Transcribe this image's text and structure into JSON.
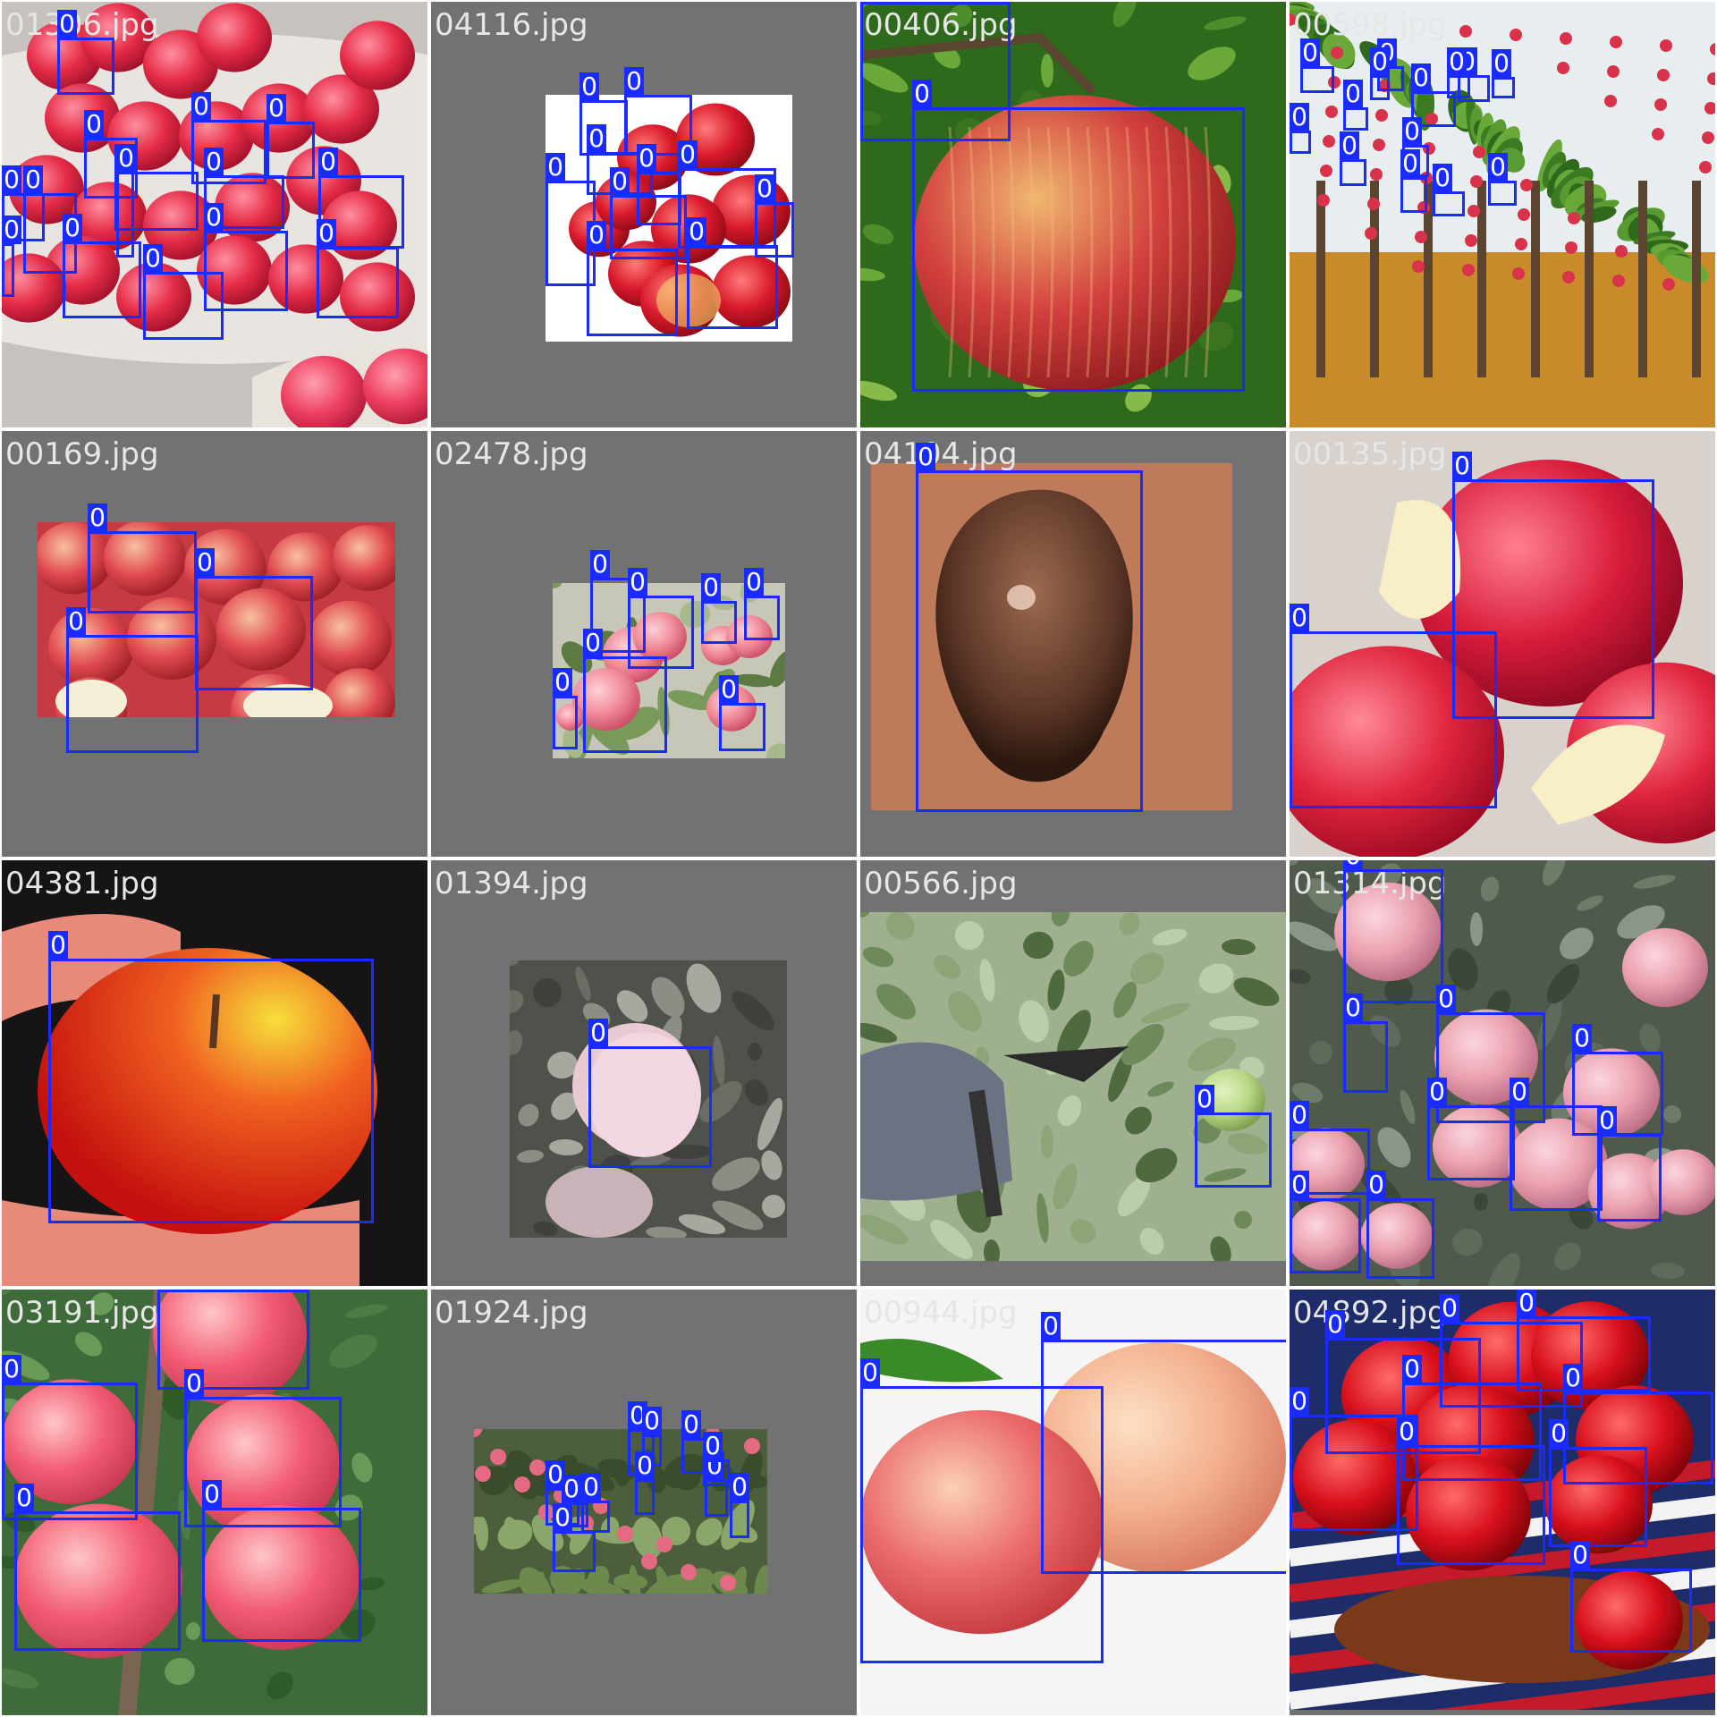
{
  "grid": {
    "rows": 4,
    "cols": 4
  },
  "box_color": "#1a2bff",
  "tiles": [
    {
      "filename": "01306.jpg",
      "photo_kind": "apples-in-baskets",
      "boxes": [
        {
          "label": "0"
        },
        {
          "label": "0"
        },
        {
          "label": "0"
        },
        {
          "label": "0"
        },
        {
          "label": "0"
        },
        {
          "label": "0"
        },
        {
          "label": "0"
        },
        {
          "label": "0"
        },
        {
          "label": "0"
        },
        {
          "label": "0"
        },
        {
          "label": "0"
        },
        {
          "label": "0"
        },
        {
          "label": "0"
        },
        {
          "label": "0"
        },
        {
          "label": "0"
        }
      ]
    },
    {
      "filename": "04116.jpg",
      "photo_kind": "apple-pile-white",
      "boxes": [
        {
          "label": "0"
        },
        {
          "label": "0"
        },
        {
          "label": "0"
        },
        {
          "label": "0"
        },
        {
          "label": "0"
        },
        {
          "label": "0"
        },
        {
          "label": "0"
        },
        {
          "label": "0"
        },
        {
          "label": "0"
        },
        {
          "label": "0"
        }
      ]
    },
    {
      "filename": "00406.jpg",
      "photo_kind": "single-apple-on-branch",
      "boxes": [
        {
          "label": "0"
        },
        {
          "label": "0"
        }
      ]
    },
    {
      "filename": "00598.jpg",
      "photo_kind": "orchard",
      "boxes": [
        {
          "label": "0"
        },
        {
          "label": "0"
        },
        {
          "label": "0"
        },
        {
          "label": "0"
        },
        {
          "label": "0"
        },
        {
          "label": "0"
        },
        {
          "label": "0"
        },
        {
          "label": "0"
        },
        {
          "label": "0"
        },
        {
          "label": "0"
        },
        {
          "label": "0"
        },
        {
          "label": "0"
        },
        {
          "label": "0"
        },
        {
          "label": "0"
        }
      ]
    },
    {
      "filename": "00169.jpg",
      "photo_kind": "apple-pile-wet",
      "boxes": [
        {
          "label": "0"
        },
        {
          "label": "0"
        },
        {
          "label": "0"
        }
      ]
    },
    {
      "filename": "02478.jpg",
      "photo_kind": "apples-on-branch-small",
      "boxes": [
        {
          "label": "0"
        },
        {
          "label": "0"
        },
        {
          "label": "0"
        },
        {
          "label": "0"
        },
        {
          "label": "0"
        },
        {
          "label": "0"
        },
        {
          "label": "0"
        }
      ]
    },
    {
      "filename": "04104.jpg",
      "photo_kind": "sepia-apple",
      "boxes": [
        {
          "label": "0"
        }
      ]
    },
    {
      "filename": "00135.jpg",
      "photo_kind": "bitten-apples",
      "boxes": [
        {
          "label": "0"
        },
        {
          "label": "0"
        }
      ]
    },
    {
      "filename": "04381.jpg",
      "photo_kind": "apple-in-hand",
      "boxes": [
        {
          "label": "0"
        }
      ]
    },
    {
      "filename": "01394.jpg",
      "photo_kind": "bagged-apple",
      "boxes": [
        {
          "label": "0"
        }
      ]
    },
    {
      "filename": "00566.jpg",
      "photo_kind": "pruning-shears",
      "boxes": [
        {
          "label": "0"
        }
      ]
    },
    {
      "filename": "01314.jpg",
      "photo_kind": "tree-apples-pink",
      "boxes": [
        {
          "label": "0"
        },
        {
          "label": "0"
        },
        {
          "label": "0"
        },
        {
          "label": "0"
        },
        {
          "label": "0"
        },
        {
          "label": "0"
        },
        {
          "label": "0"
        },
        {
          "label": "0"
        },
        {
          "label": "0"
        },
        {
          "label": "0"
        }
      ]
    },
    {
      "filename": "03191.jpg",
      "photo_kind": "big-pink-apples",
      "boxes": [
        {
          "label": "0"
        },
        {
          "label": "0"
        },
        {
          "label": "0"
        },
        {
          "label": "0"
        },
        {
          "label": "0"
        }
      ]
    },
    {
      "filename": "01924.jpg",
      "photo_kind": "distant-tree",
      "boxes": [
        {
          "label": "0"
        },
        {
          "label": "0"
        },
        {
          "label": "0"
        },
        {
          "label": "0"
        },
        {
          "label": "0"
        },
        {
          "label": "0"
        },
        {
          "label": "0"
        },
        {
          "label": "0"
        },
        {
          "label": "0"
        },
        {
          "label": "0"
        },
        {
          "label": "0"
        }
      ]
    },
    {
      "filename": "00944.jpg",
      "photo_kind": "two-apples-white",
      "boxes": [
        {
          "label": "0"
        },
        {
          "label": "0"
        }
      ]
    },
    {
      "filename": "04892.jpg",
      "photo_kind": "apples-on-flag",
      "boxes": [
        {
          "label": "0"
        },
        {
          "label": "0"
        },
        {
          "label": "0"
        },
        {
          "label": "0"
        },
        {
          "label": "0"
        },
        {
          "label": "0"
        },
        {
          "label": "0"
        },
        {
          "label": "0"
        },
        {
          "label": "0"
        }
      ]
    }
  ]
}
